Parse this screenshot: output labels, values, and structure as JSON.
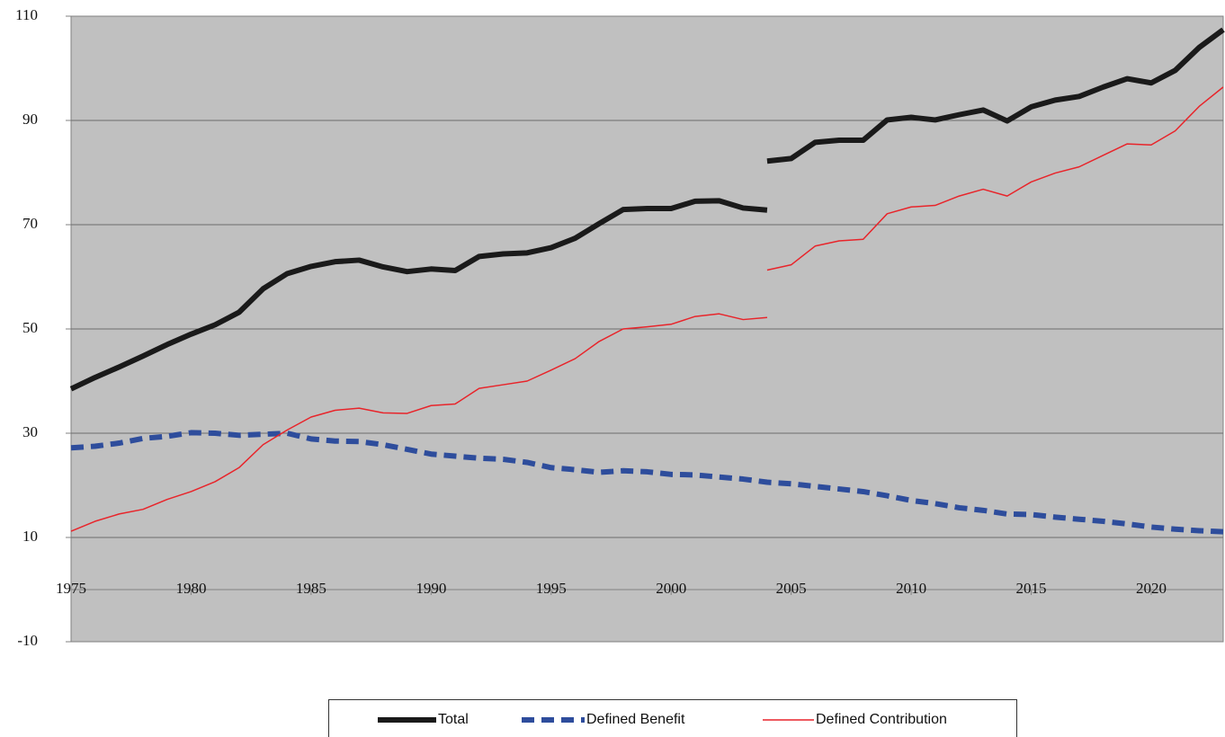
{
  "chart_data": {
    "type": "line",
    "xlim": [
      1975,
      2023
    ],
    "xticks": [
      1975,
      1980,
      1985,
      1990,
      1995,
      2000,
      2005,
      2010,
      2015,
      2020
    ],
    "ylim": [
      -10,
      110
    ],
    "yticks": [
      -10,
      10,
      30,
      50,
      70,
      90,
      110
    ],
    "grid": true,
    "legend": "bottom",
    "series": [
      {
        "name": "Total",
        "color": "#1a1a1a",
        "line_width": 6,
        "dash": false,
        "x": [
          1975,
          1976,
          1977,
          1978,
          1979,
          1980,
          1981,
          1982,
          1983,
          1984,
          1985,
          1986,
          1987,
          1988,
          1989,
          1990,
          1991,
          1992,
          1993,
          1994,
          1995,
          1996,
          1997,
          1998,
          1999,
          2000,
          2001,
          2002,
          2003,
          2004,
          null,
          2004,
          2005,
          2006,
          2007,
          2008,
          2009,
          2010,
          2011,
          2012,
          2013,
          2014,
          2015,
          2016,
          2017,
          2018,
          2019,
          2020,
          2021,
          2022,
          2023
        ],
        "values": [
          38.5,
          40.7,
          42.7,
          44.8,
          47.0,
          49.0,
          50.8,
          53.2,
          57.7,
          60.6,
          62.0,
          62.9,
          63.2,
          61.9,
          61.0,
          61.5,
          61.2,
          63.9,
          64.4,
          64.6,
          65.6,
          67.4,
          70.2,
          72.9,
          73.1,
          73.1,
          74.5,
          74.6,
          73.2,
          72.8,
          null,
          82.2,
          82.7,
          85.8,
          86.2,
          86.2,
          90.1,
          90.6,
          90.1,
          91.1,
          92.0,
          89.9,
          92.6,
          93.9,
          94.6,
          96.4,
          98.0,
          97.2,
          99.6,
          104.0,
          107.4
        ]
      },
      {
        "name": "Defined Benefit",
        "color": "#2e4d9c",
        "line_width": 6,
        "dash": true,
        "x": [
          1975,
          1976,
          1977,
          1978,
          1979,
          1980,
          1981,
          1982,
          1983,
          1984,
          1985,
          1986,
          1987,
          1988,
          1989,
          1990,
          1991,
          1992,
          1993,
          1994,
          1995,
          1996,
          1997,
          1998,
          1999,
          2000,
          2001,
          2002,
          2003,
          2004,
          2005,
          2006,
          2007,
          2008,
          2009,
          2010,
          2011,
          2012,
          2013,
          2014,
          2015,
          2016,
          2017,
          2018,
          2019,
          2020,
          2021,
          2022,
          2023
        ],
        "values": [
          27.2,
          27.5,
          28.1,
          29.0,
          29.4,
          30.1,
          30.0,
          29.6,
          29.8,
          30.0,
          28.9,
          28.5,
          28.4,
          27.8,
          26.9,
          26.0,
          25.6,
          25.2,
          25.0,
          24.4,
          23.4,
          23.0,
          22.5,
          22.8,
          22.6,
          22.1,
          22.0,
          21.6,
          21.2,
          20.6,
          20.3,
          19.8,
          19.3,
          18.8,
          18.0,
          17.1,
          16.5,
          15.7,
          15.2,
          14.5,
          14.4,
          13.9,
          13.5,
          13.1,
          12.6,
          12.0,
          11.6,
          11.3,
          11.1
        ]
      },
      {
        "name": "Defined Contribution",
        "color": "#e8242a",
        "line_width": 1.5,
        "dash": false,
        "x": [
          1975,
          1976,
          1977,
          1978,
          1979,
          1980,
          1981,
          1982,
          1983,
          1984,
          1985,
          1986,
          1987,
          1988,
          1989,
          1990,
          1991,
          1992,
          1993,
          1994,
          1995,
          1996,
          1997,
          1998,
          1999,
          2000,
          2001,
          2002,
          2003,
          2004,
          null,
          2004,
          2005,
          2006,
          2007,
          2008,
          2009,
          2010,
          2011,
          2012,
          2013,
          2014,
          2015,
          2016,
          2017,
          2018,
          2019,
          2020,
          2021,
          2022,
          2023
        ],
        "values": [
          11.2,
          13.1,
          14.5,
          15.4,
          17.3,
          18.8,
          20.7,
          23.4,
          27.8,
          30.6,
          33.1,
          34.4,
          34.8,
          33.9,
          33.8,
          35.3,
          35.6,
          38.6,
          39.3,
          40.0,
          42.1,
          44.3,
          47.6,
          50.0,
          50.4,
          50.9,
          52.4,
          52.9,
          51.8,
          52.2,
          null,
          61.3,
          62.3,
          65.9,
          66.9,
          67.2,
          72.1,
          73.4,
          73.7,
          75.5,
          76.8,
          75.5,
          78.2,
          79.9,
          81.1,
          83.3,
          85.5,
          85.3,
          88.0,
          92.7,
          96.4
        ]
      }
    ]
  }
}
